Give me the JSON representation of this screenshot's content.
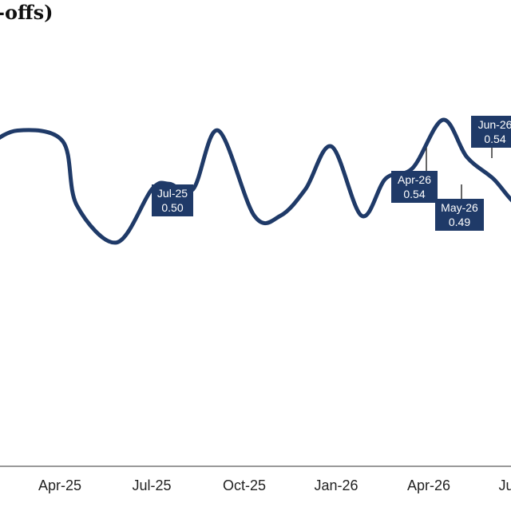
{
  "chart_data": {
    "type": "line",
    "title": "-offs)",
    "xlabel": "",
    "ylabel": "",
    "x_tick_labels": [
      "Apr-25",
      "Jul-25",
      "Oct-25",
      "Jan-26",
      "Apr-26",
      "Ju"
    ],
    "ylim": [
      0.0,
      0.8
    ],
    "grid": false,
    "colors": {
      "line": "#1f3a68",
      "label_bg": "#1f3a68",
      "label_text": "#ffffff"
    },
    "series": [
      {
        "x": [
          "2024-12-01",
          "2025-01-01",
          "2025-02-15",
          "2025-03-01",
          "2025-04-10",
          "2025-05-15",
          "2025-06-01",
          "2025-06-25",
          "2025-07-20",
          "2025-08-25",
          "2025-09-20",
          "2025-10-15",
          "2025-11-10",
          "2025-12-10",
          "2026-01-03",
          "2026-01-30",
          "2026-03-01",
          "2026-03-25",
          "2026-04-20",
          "2026-05-17",
          "2026-06-08",
          "2026-07-01"
        ],
        "values": [
          0.6,
          0.63,
          0.61,
          0.49,
          0.42,
          0.52,
          0.53,
          0.52,
          0.63,
          0.47,
          0.47,
          0.52,
          0.6,
          0.47,
          0.54,
          0.56,
          0.65,
          0.58,
          0.54,
          0.49,
          0.54,
          0.46
        ]
      }
    ],
    "annotations": [
      {
        "label": "Jul-25",
        "value": "0.50",
        "x": "2025-07-01",
        "y": 0.515
      },
      {
        "label": "Apr-26",
        "value": "0.54",
        "x": "2026-04-15",
        "y": 0.555
      },
      {
        "label": "May-26",
        "value": "0.49",
        "x": "2026-05-17",
        "y": 0.49
      },
      {
        "label": "Jun-26",
        "value": "0.54",
        "x": "2026-06-10",
        "y": 0.56
      }
    ]
  }
}
